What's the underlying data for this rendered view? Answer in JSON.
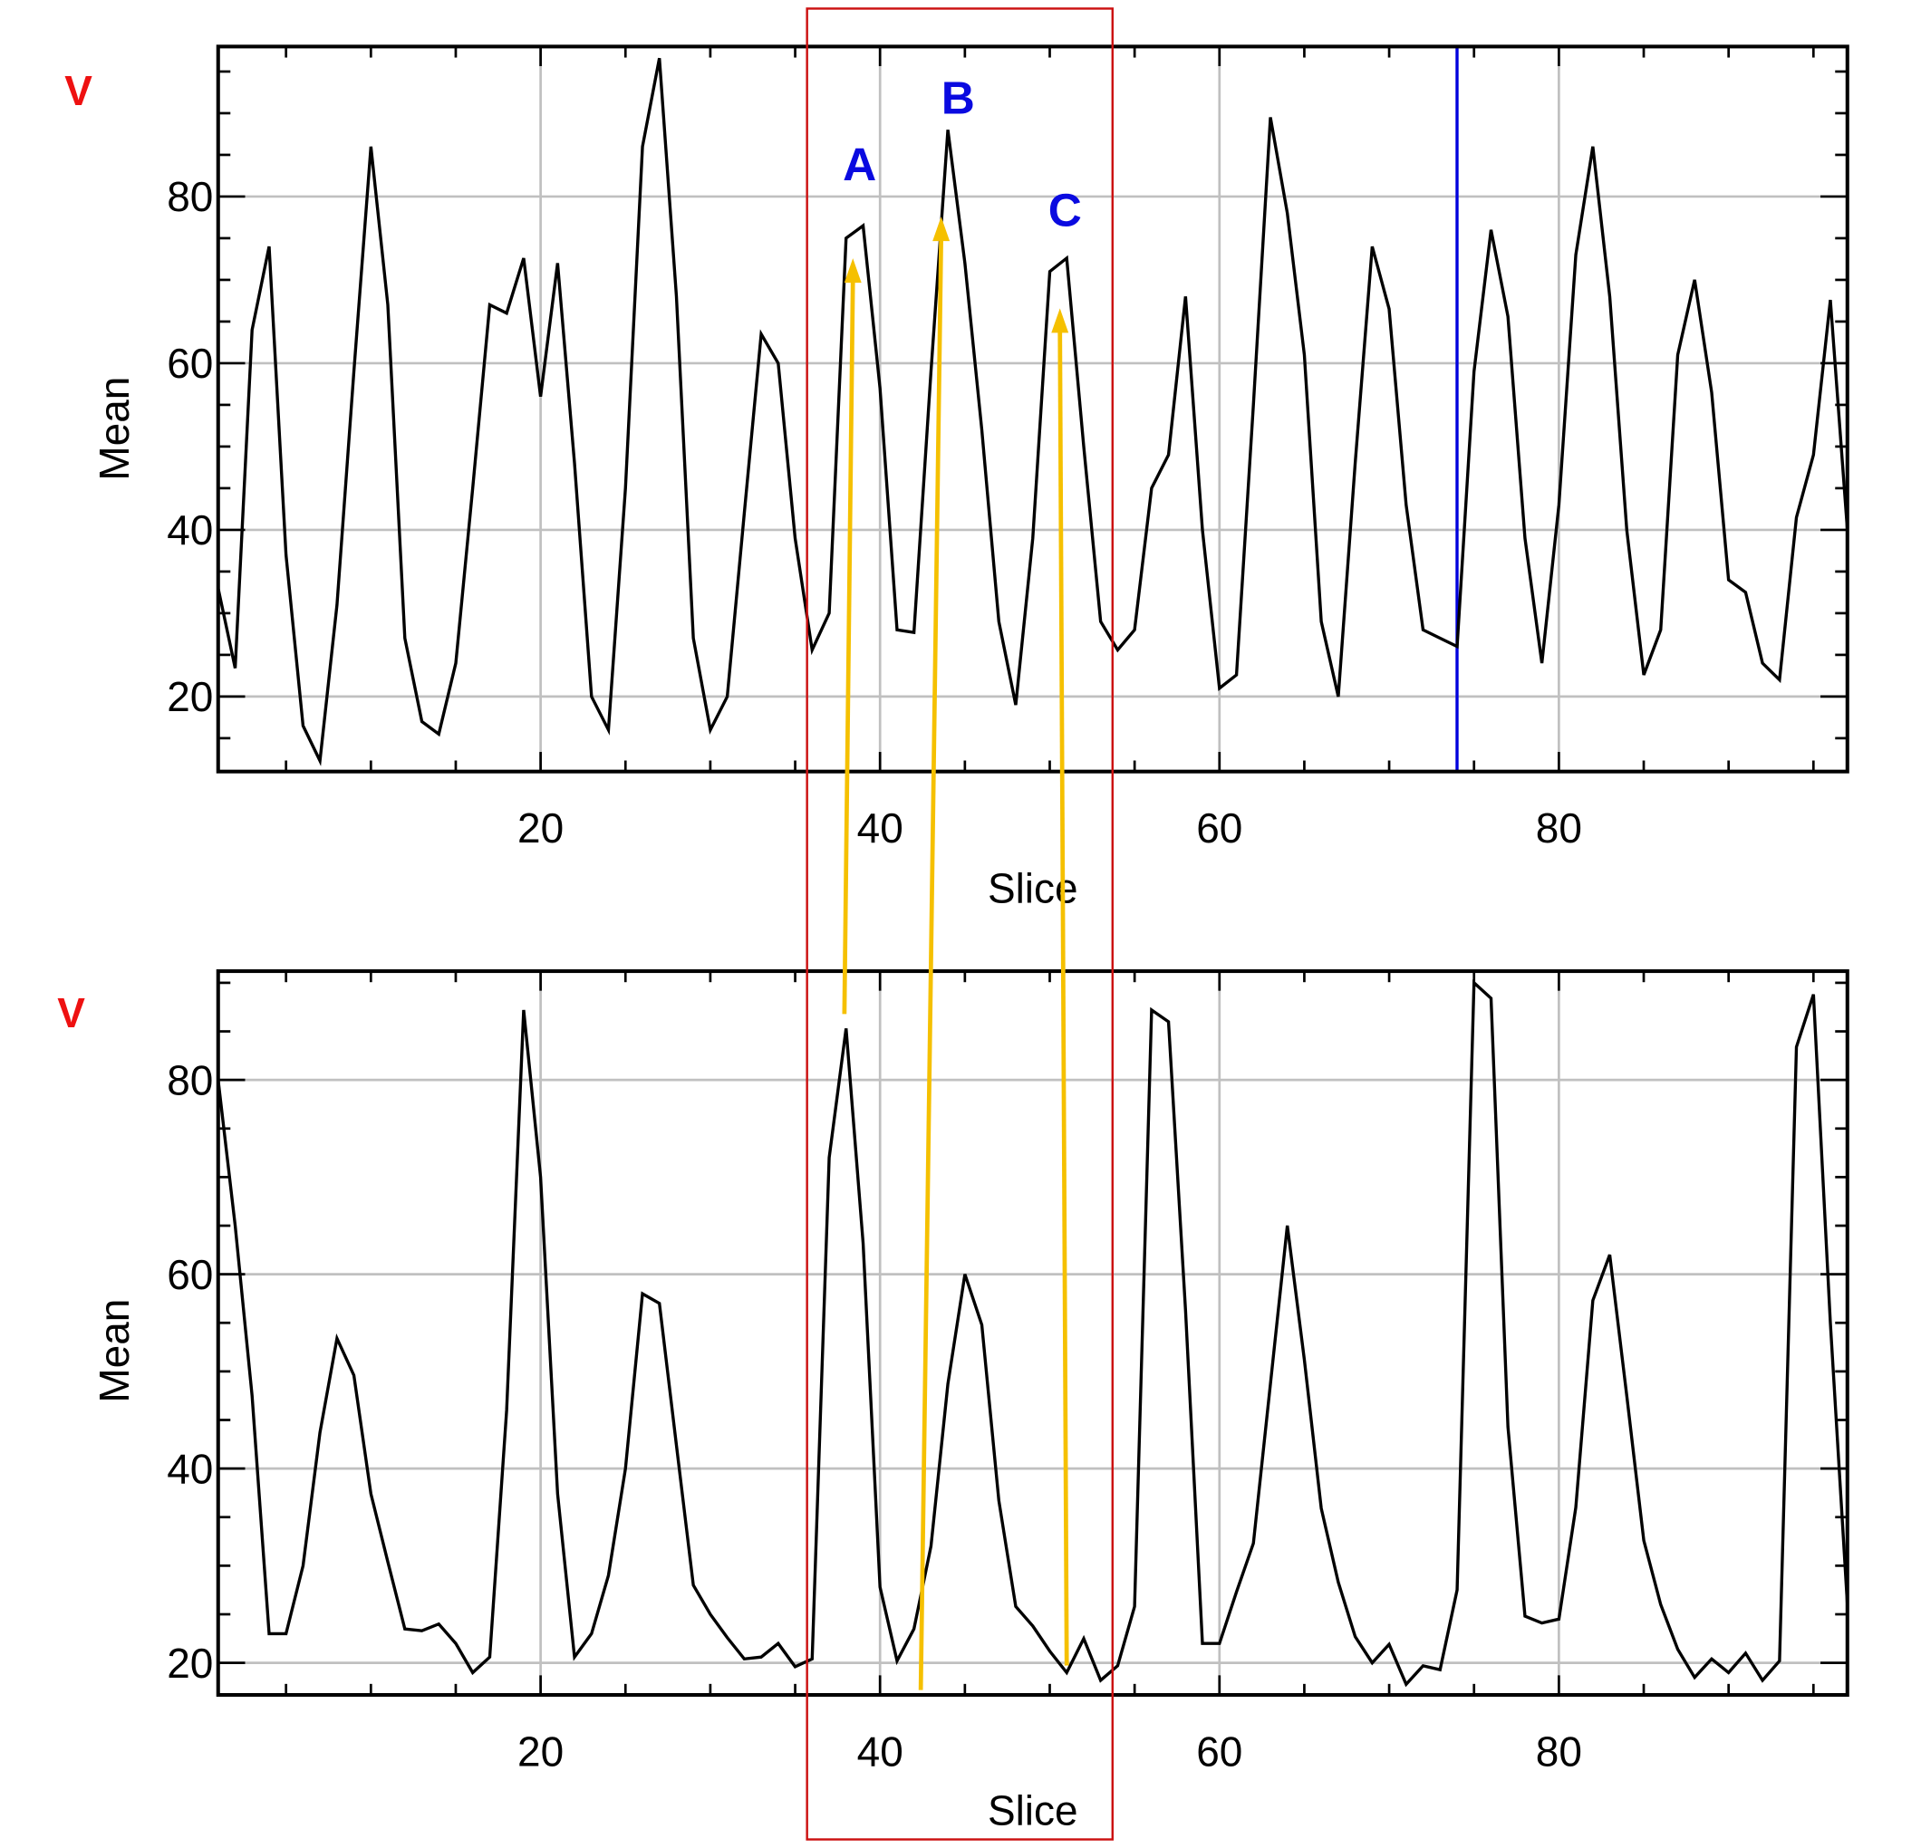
{
  "colors": {
    "line": "#000000",
    "grid": "#c0c0c0",
    "cursor": "#0000dd",
    "box": "#cc1111",
    "arrow": "#f5c000",
    "label": "#0a0ae0",
    "v": "#ee1111"
  },
  "chart_data": [
    {
      "type": "line",
      "panel_label": "V",
      "xlabel": "Slice",
      "ylabel": "Mean",
      "xlim": [
        1,
        97
      ],
      "ylim": [
        11,
        98
      ],
      "xticks": [
        20,
        40,
        60,
        80
      ],
      "yticks": [
        20,
        40,
        60,
        80
      ],
      "grid": true,
      "cursor_slice": 74,
      "annotations": [
        {
          "text": "A",
          "slice": 38.8,
          "value": 84
        },
        {
          "text": "B",
          "slice": 44.6,
          "value": 92
        },
        {
          "text": "C",
          "slice": 50.9,
          "value": 78.5
        }
      ],
      "x": [
        1,
        2,
        3,
        4,
        5,
        6,
        7,
        8,
        9,
        10,
        11,
        12,
        13,
        14,
        15,
        16,
        17,
        18,
        19,
        20,
        21,
        22,
        23,
        24,
        25,
        26,
        27,
        28,
        29,
        30,
        31,
        32,
        33,
        34,
        35,
        36,
        37,
        38,
        39,
        40,
        41,
        42,
        43,
        44,
        45,
        46,
        47,
        48,
        49,
        50,
        51,
        52,
        53,
        54,
        55,
        56,
        57,
        58,
        59,
        60,
        61,
        62,
        63,
        64,
        65,
        66,
        67,
        68,
        69,
        70,
        71,
        72,
        73,
        74,
        75,
        76,
        77,
        78,
        79,
        80,
        81,
        82,
        83,
        84,
        85,
        86,
        87,
        88,
        89,
        90,
        91,
        92,
        93,
        94,
        95,
        96,
        97
      ],
      "values": [
        33,
        23.4,
        64,
        74,
        37,
        16.5,
        12.3,
        31,
        59,
        86,
        67,
        27,
        17,
        15.5,
        24,
        45,
        67,
        66,
        72.6,
        56,
        72,
        48,
        20,
        16,
        45,
        86,
        96.6,
        68,
        27,
        16,
        20,
        42,
        63.5,
        60,
        39,
        25.6,
        30,
        75,
        76.5,
        57,
        28,
        27.7,
        59,
        88,
        72,
        52,
        29,
        19,
        39,
        71,
        72.6,
        50,
        29,
        25.6,
        28,
        45,
        49,
        68,
        40,
        21,
        22.6,
        55,
        89.5,
        78,
        61,
        29,
        20,
        48,
        74,
        66.5,
        43,
        28,
        27,
        26,
        59,
        76,
        65.6,
        39,
        24,
        43,
        73,
        86,
        68,
        40,
        22.6,
        28,
        61,
        70,
        56.5,
        34,
        32.5,
        24,
        22,
        41.5,
        49,
        67.6,
        40
      ]
    },
    {
      "type": "line",
      "panel_label": "V",
      "xlabel": "Slice",
      "ylabel": "Mean",
      "xlim": [
        1,
        97
      ],
      "ylim": [
        16.7,
        91.2
      ],
      "xticks": [
        20,
        40,
        60,
        80
      ],
      "yticks": [
        20,
        40,
        60,
        80
      ],
      "grid": true,
      "x": [
        1,
        2,
        3,
        4,
        5,
        6,
        7,
        8,
        9,
        10,
        11,
        12,
        13,
        14,
        15,
        16,
        17,
        18,
        19,
        20,
        21,
        22,
        23,
        24,
        25,
        26,
        27,
        28,
        29,
        30,
        31,
        32,
        33,
        34,
        35,
        36,
        37,
        38,
        39,
        40,
        41,
        42,
        43,
        44,
        45,
        46,
        47,
        48,
        49,
        50,
        51,
        52,
        53,
        54,
        55,
        56,
        57,
        58,
        59,
        60,
        61,
        62,
        63,
        64,
        65,
        66,
        67,
        68,
        69,
        70,
        71,
        72,
        73,
        74,
        75,
        76,
        77,
        78,
        79,
        80,
        81,
        82,
        83,
        84,
        85,
        86,
        87,
        88,
        89,
        90,
        91,
        92,
        93,
        94,
        95,
        96,
        97
      ],
      "values": [
        80,
        65,
        47.5,
        23,
        23,
        30,
        43.7,
        53.4,
        49.6,
        37.4,
        30.4,
        23.5,
        23.3,
        24,
        22,
        19,
        20.6,
        46,
        87.2,
        70,
        37.4,
        20.6,
        23,
        29,
        40,
        58,
        57,
        42.4,
        28,
        25,
        22.6,
        20.4,
        20.6,
        22,
        19.6,
        20.4,
        72,
        85.3,
        63.2,
        27.8,
        20.2,
        23.5,
        32,
        48.7,
        60,
        54.8,
        36.7,
        25.8,
        23.8,
        21.2,
        19,
        22.5,
        18.2,
        19.7,
        25.8,
        87.2,
        86,
        56.3,
        22,
        22,
        27.3,
        32.3,
        48.7,
        65,
        51.2,
        35.9,
        28.3,
        22.7,
        20,
        21.9,
        17.8,
        19.7,
        19.3,
        27.5,
        90,
        88.4,
        44.3,
        24.8,
        24.1,
        24.5,
        36,
        57.3,
        62,
        47.5,
        32.6,
        26,
        21.4,
        18.5,
        20.4,
        19,
        21,
        18.2,
        20.2,
        83.4,
        88.8,
        55,
        26
      ]
    }
  ],
  "highlight_region": {
    "slice_start": 35.7,
    "slice_end": 53.7
  },
  "arrows": [
    {
      "from_panel": 1,
      "from_slice": 37.9,
      "to_panel": 0,
      "to_slice": 38.4,
      "to_value": 72
    },
    {
      "from_panel": 1,
      "from_slice": 42.4,
      "to_panel": 0,
      "to_slice": 43.6,
      "to_value": 77
    },
    {
      "from_panel": 1,
      "from_slice": 51,
      "to_panel": 0,
      "to_slice": 50.6,
      "to_value": 66
    }
  ]
}
